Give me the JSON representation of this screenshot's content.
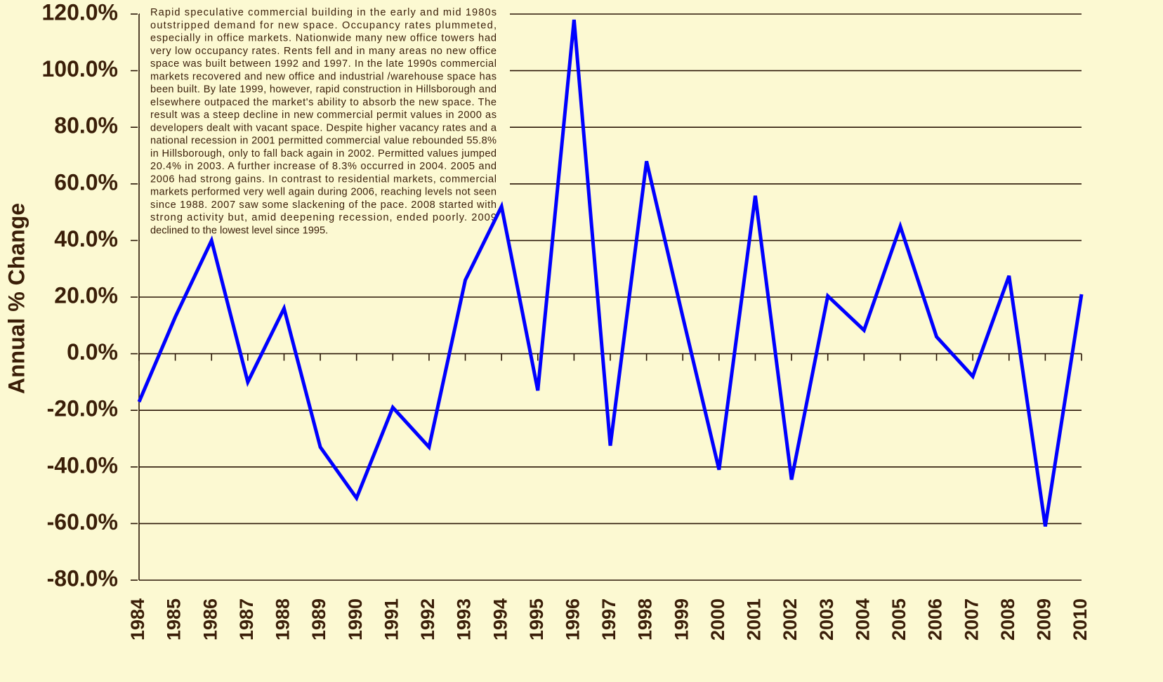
{
  "chart_data": {
    "type": "line",
    "y_label": "Annual % Change",
    "annotation": [
      "Rapid speculative commercial building in the early and mid 1980s",
      "outstripped demand for new space.  Occupancy rates plummeted,",
      "especially in office markets.  Nationwide many new office towers had",
      "very low occupancy rates.  Rents fell and in many areas no new office",
      "space was built between 1992 and 1997.  In the late 1990s commercial",
      "markets recovered and new  office and industrial /warehouse space has",
      "been built.  By late 1999, however, rapid construction in Hillsborough and",
      "elsewhere outpaced the market's ability to absorb the new space.  The",
      "result was a  steep decline in new commercial permit values in 2000 as",
      "developers dealt with vacant space.  Despite higher vacancy rates and a",
      "national recession in 2001 permitted commercial value rebounded 55.8%",
      "in Hillsborough, only to fall back again in 2002. Permitted values jumped",
      "20.4% in 2003. A further increase of 8.3% occurred in 2004. 2005 and",
      "2006 had strong gains. In contrast to residential markets, commercial",
      "markets performed very well again during 2006, reaching levels not seen",
      "since 1988.  2007 saw some slackening of the pace.  2008 started with",
      "strong activity but, amid deepening recession, ended poorly.  2009",
      "declined to the lowest level since 1995."
    ],
    "categories": [
      "1984",
      "1985",
      "1986",
      "1987",
      "1988",
      "1989",
      "1990",
      "1991",
      "1992",
      "1993",
      "1994",
      "1995",
      "1996",
      "1997",
      "1998",
      "1999",
      "2000",
      "2001",
      "2002",
      "2003",
      "2004",
      "2005",
      "2006",
      "2007",
      "2008",
      "2009",
      "2010"
    ],
    "series": [
      {
        "color": "#0000ff",
        "values": [
          -17,
          13,
          40,
          -10,
          16,
          -33,
          -51,
          -19,
          -33,
          26,
          52,
          -13,
          118,
          -32.5,
          68,
          13,
          -41,
          55.8,
          -44.5,
          20.4,
          8.3,
          45,
          6,
          -8,
          27.5,
          -61,
          21
        ]
      }
    ],
    "ylim": [
      -80,
      120
    ],
    "yticks": [
      {
        "value": -80,
        "label": "-80.0%"
      },
      {
        "value": -60,
        "label": "-60.0%"
      },
      {
        "value": -40,
        "label": "-40.0%"
      },
      {
        "value": -20,
        "label": "-20.0%"
      },
      {
        "value": 0,
        "label": "0.0%"
      },
      {
        "value": 20,
        "label": "20.0%"
      },
      {
        "value": 40,
        "label": "40.0%"
      },
      {
        "value": 60,
        "label": "60.0%"
      },
      {
        "value": 80,
        "label": "80.0%"
      },
      {
        "value": 100,
        "label": "100.0%"
      },
      {
        "value": 120,
        "label": "120.0%"
      }
    ],
    "grid": true
  }
}
